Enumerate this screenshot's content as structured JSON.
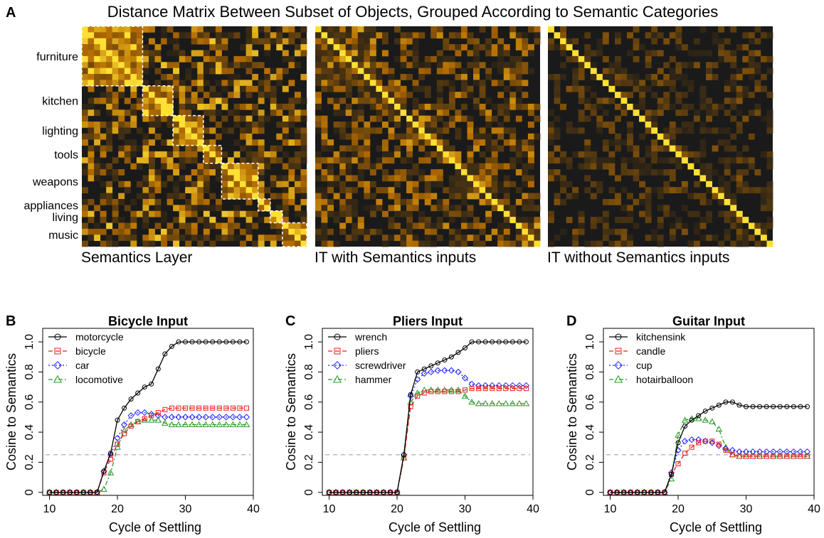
{
  "panel_a": {
    "letter": "A",
    "title": "Distance Matrix Between Subset of Objects, Grouped According to Semantic Categories",
    "categories": [
      "furniture",
      "kitchen",
      "lighting",
      "tools",
      "weapons",
      "appliances",
      "living",
      "music"
    ],
    "category_sizes": [
      10,
      5,
      5,
      3,
      6,
      2,
      2,
      4
    ],
    "matrix_size": 37,
    "matrices": [
      {
        "label": "Semantics Layer",
        "noise_level": 0.9,
        "block_strength": 0.55,
        "show_boxes": true
      },
      {
        "label": "IT with Semantics inputs",
        "noise_level": 0.65,
        "block_strength": 0.15,
        "show_boxes": false
      },
      {
        "label": "IT without Semantics inputs",
        "noise_level": 0.35,
        "block_strength": 0.0,
        "show_boxes": false
      }
    ],
    "colors": {
      "low": "#1a1a1a",
      "mid": "#b36b00",
      "high": "#ffe033",
      "box": "#ffffff"
    }
  },
  "chart_data": [
    {
      "type": "line",
      "letter": "B",
      "title": "Bicycle Input",
      "xlabel": "Cycle of Settling",
      "ylabel": "Cosine to Semantics",
      "xlim": [
        9,
        40
      ],
      "ylim": [
        0,
        1.0
      ],
      "xticks": [
        10,
        20,
        30,
        40
      ],
      "yticks": [
        0,
        0.2,
        0.4,
        0.6,
        0.8,
        1.0
      ],
      "ytick_labels": [
        "0",
        "0.2",
        "0.4",
        "0.6",
        "0.8",
        "1.0"
      ],
      "reference_line": 0.25,
      "x": [
        10,
        11,
        12,
        13,
        14,
        15,
        16,
        17,
        18,
        19,
        20,
        21,
        22,
        23,
        24,
        25,
        26,
        27,
        28,
        29,
        30,
        31,
        32,
        33,
        34,
        35,
        36,
        37,
        38,
        39
      ],
      "series": [
        {
          "name": "motorcycle",
          "marker": "circle",
          "color": "#000000",
          "dash": "",
          "values": [
            0,
            0,
            0,
            0,
            0,
            0,
            0,
            0,
            0.14,
            0.26,
            0.48,
            0.56,
            0.62,
            0.66,
            0.7,
            0.72,
            0.82,
            0.92,
            0.97,
            1.0,
            1.0,
            1.0,
            1.0,
            1.0,
            1.0,
            1.0,
            1.0,
            1.0,
            1.0,
            1.0
          ]
        },
        {
          "name": "bicycle",
          "marker": "square",
          "color": "#e8211c",
          "dash": "6,4",
          "values": [
            0,
            0,
            0,
            0,
            0,
            0,
            0,
            0,
            0.13,
            0.22,
            0.32,
            0.39,
            0.44,
            0.47,
            0.49,
            0.51,
            0.53,
            0.55,
            0.56,
            0.56,
            0.56,
            0.56,
            0.56,
            0.56,
            0.56,
            0.56,
            0.56,
            0.56,
            0.56,
            0.56
          ]
        },
        {
          "name": "car",
          "marker": "diamond",
          "color": "#1f1fff",
          "dash": "2,3",
          "values": [
            0,
            0,
            0,
            0,
            0,
            0,
            0,
            0,
            0.14,
            0.25,
            0.36,
            0.45,
            0.51,
            0.53,
            0.53,
            0.52,
            0.51,
            0.5,
            0.5,
            0.5,
            0.5,
            0.5,
            0.5,
            0.5,
            0.5,
            0.5,
            0.5,
            0.5,
            0.5,
            0.5
          ]
        },
        {
          "name": "locomotive",
          "marker": "triangle",
          "color": "#2a9a2a",
          "dash": "6,3,2,3",
          "values": [
            0,
            0,
            0,
            0,
            0,
            0,
            0,
            0,
            0.02,
            0.13,
            0.3,
            0.41,
            0.45,
            0.47,
            0.48,
            0.48,
            0.48,
            0.46,
            0.45,
            0.45,
            0.45,
            0.45,
            0.45,
            0.45,
            0.45,
            0.45,
            0.45,
            0.45,
            0.45,
            0.45
          ]
        }
      ]
    },
    {
      "type": "line",
      "letter": "C",
      "title": "Pliers Input",
      "xlabel": "Cycle of Settling",
      "ylabel": "Cosine to Semantics",
      "xlim": [
        9,
        40
      ],
      "ylim": [
        0,
        1.0
      ],
      "xticks": [
        10,
        20,
        30,
        40
      ],
      "yticks": [
        0,
        0.2,
        0.4,
        0.6,
        0.8,
        1.0
      ],
      "ytick_labels": [
        "0",
        "0.2",
        "0.4",
        "0.6",
        "0.8",
        "1.0"
      ],
      "reference_line": 0.25,
      "x": [
        10,
        11,
        12,
        13,
        14,
        15,
        16,
        17,
        18,
        19,
        20,
        21,
        22,
        23,
        24,
        25,
        26,
        27,
        28,
        29,
        30,
        31,
        32,
        33,
        34,
        35,
        36,
        37,
        38,
        39
      ],
      "series": [
        {
          "name": "wrench",
          "marker": "circle",
          "color": "#000000",
          "dash": "",
          "values": [
            0,
            0,
            0,
            0,
            0,
            0,
            0,
            0,
            0,
            0,
            0,
            0.25,
            0.65,
            0.8,
            0.82,
            0.84,
            0.86,
            0.88,
            0.9,
            0.93,
            0.96,
            1.0,
            1.0,
            1.0,
            1.0,
            1.0,
            1.0,
            1.0,
            1.0,
            1.0
          ]
        },
        {
          "name": "pliers",
          "marker": "square",
          "color": "#e8211c",
          "dash": "6,4",
          "values": [
            0,
            0,
            0,
            0,
            0,
            0,
            0,
            0,
            0,
            0,
            0,
            0.23,
            0.57,
            0.64,
            0.66,
            0.67,
            0.67,
            0.67,
            0.67,
            0.67,
            0.68,
            0.69,
            0.69,
            0.69,
            0.69,
            0.69,
            0.69,
            0.69,
            0.69,
            0.69
          ]
        },
        {
          "name": "screwdriver",
          "marker": "diamond",
          "color": "#1f1fff",
          "dash": "2,3",
          "values": [
            0,
            0,
            0,
            0,
            0,
            0,
            0,
            0,
            0,
            0,
            0,
            0.25,
            0.64,
            0.75,
            0.79,
            0.8,
            0.81,
            0.81,
            0.81,
            0.8,
            0.76,
            0.72,
            0.71,
            0.71,
            0.71,
            0.71,
            0.71,
            0.71,
            0.71,
            0.71
          ]
        },
        {
          "name": "hammer",
          "marker": "triangle",
          "color": "#2a9a2a",
          "dash": "6,3,2,3",
          "values": [
            0,
            0,
            0,
            0,
            0,
            0,
            0,
            0,
            0,
            0,
            0,
            0.23,
            0.6,
            0.66,
            0.68,
            0.68,
            0.68,
            0.68,
            0.68,
            0.68,
            0.64,
            0.6,
            0.59,
            0.59,
            0.59,
            0.59,
            0.59,
            0.59,
            0.59,
            0.59
          ]
        }
      ]
    },
    {
      "type": "line",
      "letter": "D",
      "title": "Guitar Input",
      "xlabel": "Cycle of Settling",
      "ylabel": "Cosine to Semantics",
      "xlim": [
        9,
        40
      ],
      "ylim": [
        0,
        1.0
      ],
      "xticks": [
        10,
        20,
        30,
        40
      ],
      "yticks": [
        0,
        0.2,
        0.4,
        0.6,
        0.8,
        1.0
      ],
      "ytick_labels": [
        "0",
        "0.2",
        "0.4",
        "0.6",
        "0.8",
        "1.0"
      ],
      "reference_line": 0.25,
      "x": [
        10,
        11,
        12,
        13,
        14,
        15,
        16,
        17,
        18,
        19,
        20,
        21,
        22,
        23,
        24,
        25,
        26,
        27,
        28,
        29,
        30,
        31,
        32,
        33,
        34,
        35,
        36,
        37,
        38,
        39
      ],
      "series": [
        {
          "name": "kitchensink",
          "marker": "circle",
          "color": "#000000",
          "dash": "",
          "values": [
            0,
            0,
            0,
            0,
            0,
            0,
            0,
            0,
            0,
            0.12,
            0.33,
            0.44,
            0.48,
            0.51,
            0.54,
            0.56,
            0.58,
            0.6,
            0.6,
            0.58,
            0.57,
            0.57,
            0.57,
            0.57,
            0.57,
            0.57,
            0.57,
            0.57,
            0.57,
            0.57
          ]
        },
        {
          "name": "candle",
          "marker": "square",
          "color": "#e8211c",
          "dash": "6,4",
          "values": [
            0,
            0,
            0,
            0,
            0,
            0,
            0,
            0,
            0,
            0.12,
            0.19,
            0.26,
            0.3,
            0.33,
            0.34,
            0.34,
            0.32,
            0.28,
            0.25,
            0.24,
            0.24,
            0.24,
            0.24,
            0.24,
            0.24,
            0.24,
            0.24,
            0.24,
            0.24,
            0.24
          ]
        },
        {
          "name": "cup",
          "marker": "diamond",
          "color": "#1f1fff",
          "dash": "2,3",
          "values": [
            0,
            0,
            0,
            0,
            0,
            0,
            0,
            0,
            0,
            0.13,
            0.28,
            0.34,
            0.35,
            0.35,
            0.34,
            0.33,
            0.31,
            0.29,
            0.28,
            0.27,
            0.27,
            0.27,
            0.27,
            0.27,
            0.27,
            0.27,
            0.27,
            0.27,
            0.27,
            0.27
          ]
        },
        {
          "name": "hotairballoon",
          "marker": "triangle",
          "color": "#2a9a2a",
          "dash": "6,3,2,3",
          "values": [
            0,
            0,
            0,
            0,
            0,
            0,
            0,
            0,
            0,
            0.09,
            0.38,
            0.48,
            0.49,
            0.49,
            0.48,
            0.47,
            0.42,
            0.3,
            0.25,
            0.24,
            0.24,
            0.24,
            0.24,
            0.24,
            0.24,
            0.24,
            0.24,
            0.24,
            0.24,
            0.24
          ]
        }
      ]
    }
  ]
}
